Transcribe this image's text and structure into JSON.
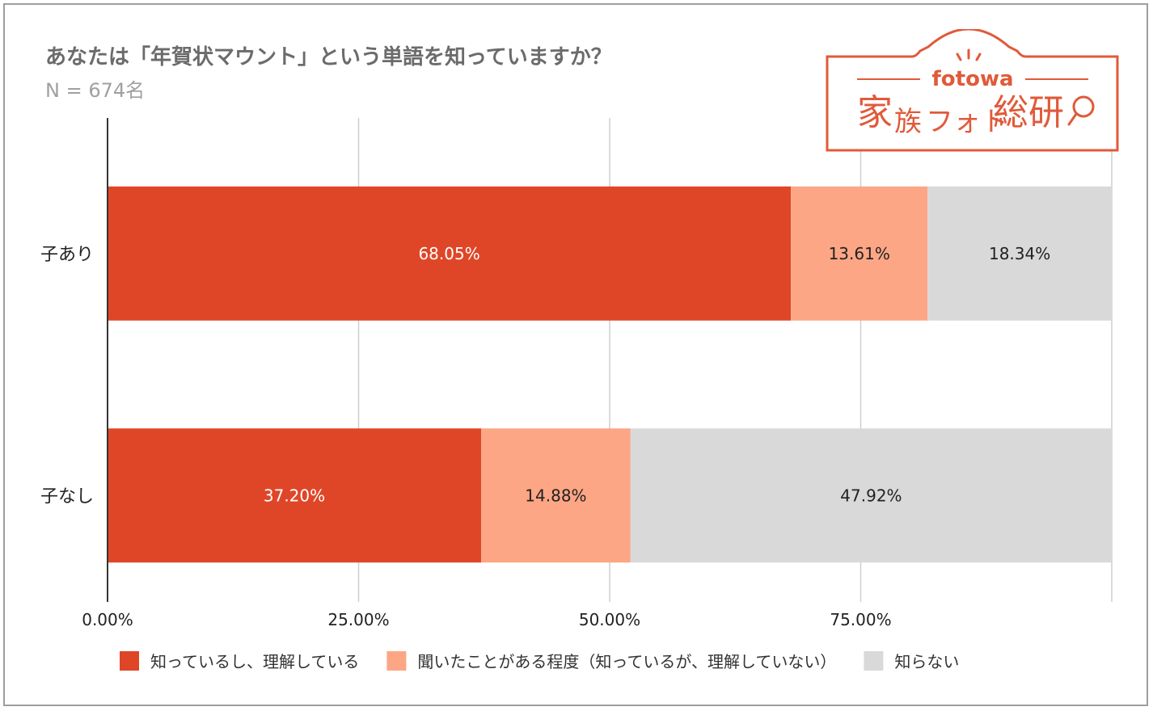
{
  "header": {
    "title": "あなたは「年賀状マウント」という単語を知っていますか？",
    "subtitle": "N = 674名"
  },
  "logo": {
    "brand": "fotowa",
    "name_1": "家",
    "name_2": "族",
    "name_3": "フォト",
    "name_4": "総研",
    "color": "#e05a3a"
  },
  "chart_data": {
    "type": "bar",
    "orientation": "horizontal",
    "stacked": true,
    "categories": [
      "子あり",
      "子なし"
    ],
    "series": [
      {
        "name": "知っているし、理解している",
        "color": "#df4628",
        "label_color": "#ffffff",
        "values": [
          68.05,
          37.2
        ],
        "labels": [
          "68.05%",
          "37.20%"
        ]
      },
      {
        "name": "聞いたことがある程度（知っているが、理解していない）",
        "color": "#fca686",
        "label_color": "#222222",
        "values": [
          13.61,
          14.88
        ],
        "labels": [
          "13.61%",
          "14.88%"
        ]
      },
      {
        "name": "知らない",
        "color": "#d9d9d9",
        "label_color": "#222222",
        "values": [
          18.34,
          47.92
        ],
        "labels": [
          "18.34%",
          "47.92%"
        ]
      }
    ],
    "x_ticks": [
      "0.00%",
      "25.00%",
      "50.00%",
      "75.00%"
    ],
    "xlim": [
      0,
      100
    ],
    "grid": true,
    "legend_position": "bottom"
  }
}
